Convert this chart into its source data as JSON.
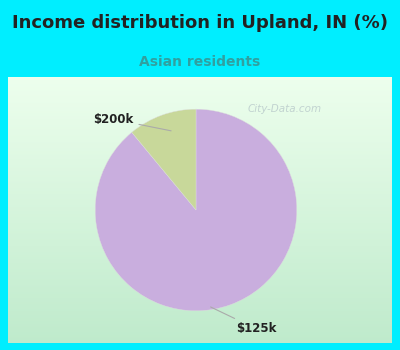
{
  "title": "Income distribution in Upland, IN (%)",
  "subtitle": "Asian residents",
  "slices": [
    89.0,
    11.0
  ],
  "slice_order": [
    "$125k",
    "$200k"
  ],
  "colors": [
    "#c9aede",
    "#c8d89a"
  ],
  "title_fontsize": 13,
  "subtitle_fontsize": 10,
  "title_color": "#222222",
  "subtitle_color": "#30a0a0",
  "cyan_color": "#00eeff",
  "chart_border_color": "#00eeff",
  "watermark": "City-Data.com",
  "watermark_color": "#bbcccc",
  "label_fontsize": 8.5,
  "label_color": "#222222",
  "annotation_color": "#aaaaaa"
}
